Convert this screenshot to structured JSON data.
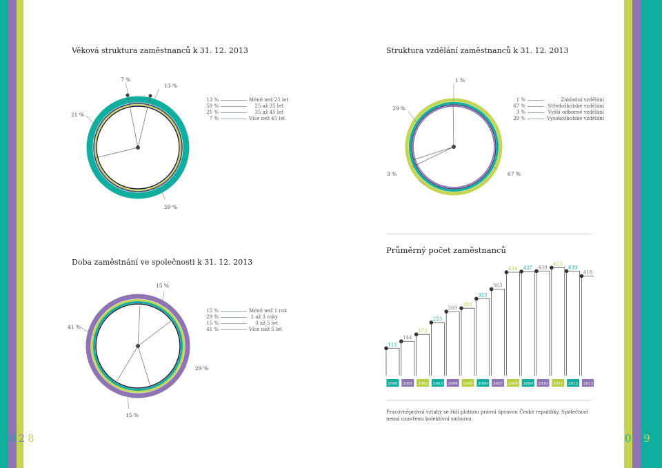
{
  "page_left": {
    "number_digits": [
      "0",
      "2",
      "8"
    ],
    "age_chart": {
      "title": "Věková struktura zaměstnanců k 31. 12. 2013",
      "slice_labels": [
        "7 %",
        "13 %",
        "21 %",
        "59 %"
      ],
      "legend": [
        {
          "pct": "13 %",
          "label": "Méně než 25 let"
        },
        {
          "pct": "59 %",
          "label": "25 až 35 let"
        },
        {
          "pct": "21 %",
          "label": "35 až 45 let"
        },
        {
          "pct": "7 %",
          "label": "Více než 45 let"
        }
      ]
    },
    "tenure_chart": {
      "title": "Doba zaměstnání ve společnosti k 31. 12. 2013",
      "slice_labels": [
        "15 %",
        "41 %",
        "29 %",
        "15 %"
      ],
      "legend": [
        {
          "pct": "15 %",
          "label": "Méně než 1 rok"
        },
        {
          "pct": "29 %",
          "label": "1 až 3 roky"
        },
        {
          "pct": "15 %",
          "label": "3 až 5 let"
        },
        {
          "pct": "41 %",
          "label": "Více než 5 let"
        }
      ]
    }
  },
  "page_right": {
    "number_digits": [
      "0",
      "2",
      "9"
    ],
    "education_chart": {
      "title": "Struktura vzdělání zaměstnanců k 31. 12. 2013",
      "slice_labels": [
        "1 %",
        "29 %",
        "3 %",
        "67 %"
      ],
      "legend": [
        {
          "pct": "1 %",
          "label": "Základní vzdělání"
        },
        {
          "pct": "67 %",
          "label": "Středoškolské vzdělání"
        },
        {
          "pct": "3 %",
          "label": "Vyšší odborné vzdělání"
        },
        {
          "pct": "29 %",
          "label": "Vysokoškolské vzdělání"
        }
      ]
    },
    "employees_chart": {
      "title": "Průměrný počet zaměstnanců"
    },
    "footnote": "Pracovněprávní vztahy se řídí platnou právní úpravou České republiky. Společnost nemá uzavřenu kolektivní smlouvu."
  },
  "chart_data": [
    {
      "type": "pie",
      "title": "Věková struktura zaměstnanců k 31. 12. 2013",
      "categories": [
        "Méně než 25 let",
        "25 až 35 let",
        "35 až 45 let",
        "Více než 45 let"
      ],
      "values": [
        13,
        59,
        21,
        7
      ]
    },
    {
      "type": "pie",
      "title": "Struktura vzdělání zaměstnanců k 31. 12. 2013",
      "categories": [
        "Základní vzdělání",
        "Středoškolské vzdělání",
        "Vyšší odborné vzdělání",
        "Vysokoškolské vzdělání"
      ],
      "values": [
        1,
        67,
        3,
        29
      ]
    },
    {
      "type": "pie",
      "title": "Doba zaměstnání ve společnosti k 31. 12. 2013",
      "categories": [
        "Méně než 1 rok",
        "1 až 3 roky",
        "3 až 5 let",
        "Více než 5 let"
      ],
      "values": [
        15,
        29,
        15,
        41
      ]
    },
    {
      "type": "bar",
      "title": "Průměrný počet zaměstnanců",
      "categories": [
        "2000",
        "2001",
        "2002",
        "2003",
        "2004",
        "2005",
        "2006",
        "2007",
        "2008",
        "2009",
        "2010",
        "2011",
        "2012",
        "2013"
      ],
      "values": [
        115,
        144,
        173,
        223,
        269,
        283,
        323,
        363,
        434,
        437,
        439,
        453,
        439,
        418
      ],
      "value_label_colors": [
        "#0fae9f",
        "#777777",
        "#b9cf3f",
        "#0fae9f",
        "#777777",
        "#b9cf3f",
        "#0fae9f",
        "#777777",
        "#b9cf3f",
        "#0fae9f",
        "#777777",
        "#b9cf3f",
        "#0fae9f",
        "#777777"
      ],
      "year_badge_colors": [
        "#0fae9f",
        "#8e74b5",
        "#b9cf3f",
        "#0fae9f",
        "#8e74b5",
        "#b9cf3f",
        "#0fae9f",
        "#8e74b5",
        "#b9cf3f",
        "#0fae9f",
        "#8e74b5",
        "#b9cf3f",
        "#0fae9f",
        "#8e74b5"
      ],
      "ylim": [
        0,
        460
      ]
    }
  ],
  "colors": {
    "teal": "#0fae9f",
    "purple": "#8e74b5",
    "lime": "#c3d553",
    "dark_ring": "#1d1d3a",
    "navy_ring": "#3c3770"
  }
}
